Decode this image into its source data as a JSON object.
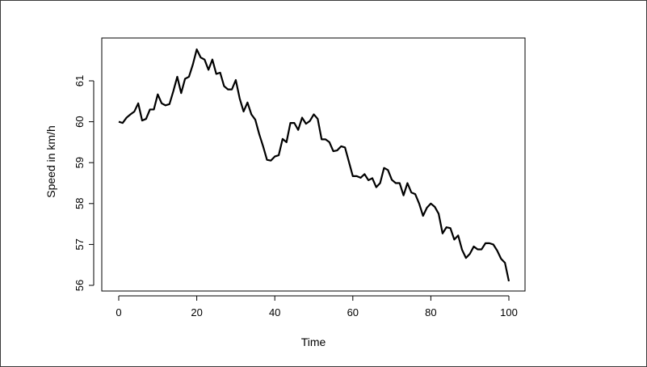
{
  "chart_data": {
    "type": "line",
    "title": "",
    "xlabel": "Time",
    "ylabel": "Speed in km/h",
    "xlim": [
      0,
      100
    ],
    "ylim": [
      56,
      61.8
    ],
    "x_ticks": [
      0,
      20,
      40,
      60,
      80,
      100
    ],
    "y_ticks": [
      56,
      57,
      58,
      59,
      60,
      61
    ],
    "grid": false,
    "legend": "none",
    "line_color": "#000000",
    "series": [
      {
        "x": [
          0,
          1,
          2,
          3,
          4,
          5,
          6,
          7,
          8,
          9,
          10,
          11,
          12,
          13,
          14,
          15,
          16,
          17,
          18,
          19,
          20,
          21,
          22,
          23,
          24,
          25,
          26,
          27,
          28,
          29,
          30,
          31,
          32,
          33,
          34,
          35,
          36,
          37,
          38,
          39,
          40,
          41,
          42,
          43,
          44,
          45,
          46,
          47,
          48,
          49,
          50,
          51,
          52,
          53,
          54,
          55,
          56,
          57,
          58,
          59,
          60,
          61,
          62,
          63,
          64,
          65,
          66,
          67,
          68,
          69,
          70,
          71,
          72,
          73,
          74,
          75,
          76,
          77,
          78,
          79,
          80,
          81,
          82,
          83,
          84,
          85,
          86,
          87,
          88,
          89,
          90,
          91,
          92,
          93,
          94,
          95,
          96,
          97,
          98,
          99,
          100
        ],
        "y": [
          60.0,
          59.97,
          60.1,
          60.18,
          60.25,
          60.45,
          60.03,
          60.07,
          60.3,
          60.3,
          60.67,
          60.45,
          60.4,
          60.43,
          60.75,
          61.1,
          60.7,
          61.05,
          61.1,
          61.4,
          61.77,
          61.57,
          61.52,
          61.27,
          61.52,
          61.17,
          61.2,
          60.87,
          60.79,
          60.79,
          61.02,
          60.57,
          60.25,
          60.47,
          60.18,
          60.05,
          59.7,
          59.4,
          59.07,
          59.05,
          59.15,
          59.18,
          59.58,
          59.5,
          59.97,
          59.97,
          59.8,
          60.1,
          59.95,
          60.02,
          60.18,
          60.07,
          59.57,
          59.57,
          59.5,
          59.28,
          59.3,
          59.4,
          59.37,
          59.02,
          58.67,
          58.67,
          58.63,
          58.72,
          58.57,
          58.62,
          58.4,
          58.5,
          58.87,
          58.82,
          58.58,
          58.5,
          58.5,
          58.2,
          58.5,
          58.27,
          58.23,
          58.0,
          57.7,
          57.9,
          58.0,
          57.92,
          57.75,
          57.27,
          57.42,
          57.4,
          57.12,
          57.22,
          56.87,
          56.67,
          56.77,
          56.95,
          56.88,
          56.88,
          57.03,
          57.03,
          57.0,
          56.85,
          56.65,
          56.55,
          56.1
        ]
      }
    ]
  }
}
